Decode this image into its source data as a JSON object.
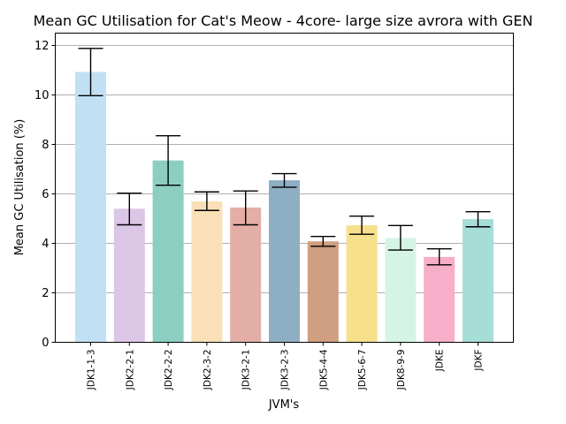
{
  "chart_data": {
    "type": "bar",
    "title": "Mean GC Utilisation for Cat's Meow - 4core- large size avrora with GEN",
    "xlabel": "JVM's",
    "ylabel": "Mean GC Utilisation (%)",
    "ylim": [
      0,
      12.5
    ],
    "yticks": [
      0,
      2,
      4,
      6,
      8,
      10,
      12
    ],
    "grid": "horizontal",
    "categories": [
      "JDK1-1-3",
      "JDK2-2-1",
      "JDK2-2-2",
      "JDK2-3-2",
      "JDK3-2-1",
      "JDK3-2-3",
      "JDK5-4-4",
      "JDK5-6-7",
      "JDK8-9-9",
      "JDKE",
      "JDKF"
    ],
    "values": [
      10.93,
      5.4,
      7.35,
      5.7,
      5.45,
      6.55,
      4.08,
      4.73,
      4.22,
      3.45,
      4.98
    ],
    "error_low": [
      9.97,
      4.75,
      6.35,
      5.33,
      4.75,
      6.27,
      3.88,
      4.37,
      3.73,
      3.13,
      4.67
    ],
    "error_high": [
      11.88,
      6.03,
      8.35,
      6.08,
      6.12,
      6.82,
      4.28,
      5.1,
      4.72,
      3.78,
      5.28
    ],
    "colors": [
      "#c2e0f4",
      "#dcc6e6",
      "#8ccfc1",
      "#fae0b6",
      "#e3aea6",
      "#8eaec4",
      "#d09e80",
      "#f7e08c",
      "#d5f4e6",
      "#f7aec8",
      "#a6ddd7"
    ]
  }
}
